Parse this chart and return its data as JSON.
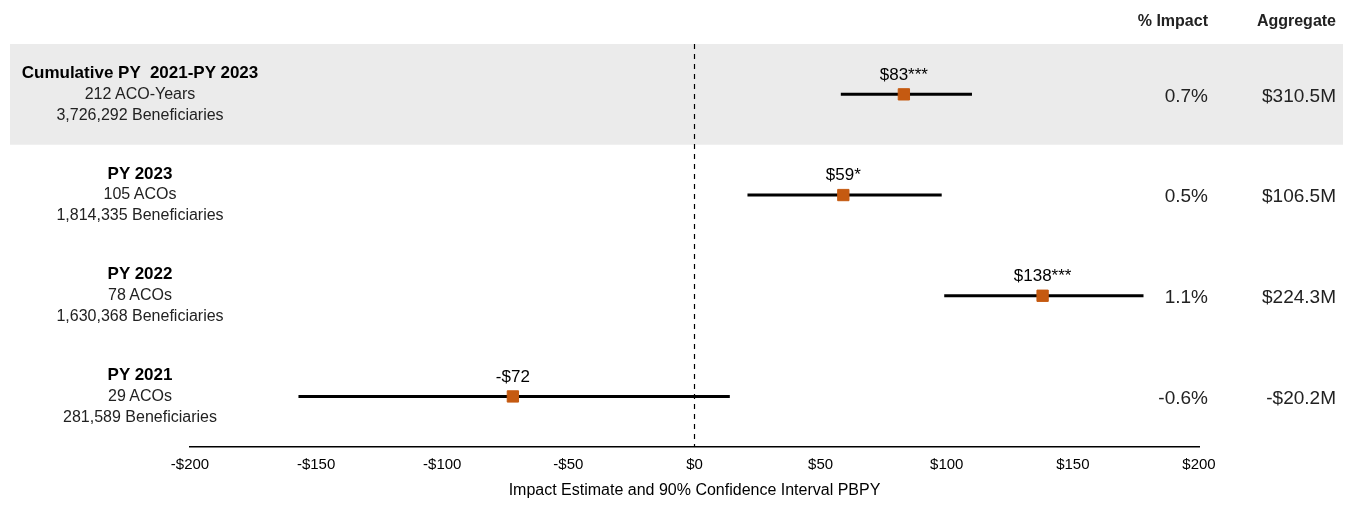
{
  "chart_data": {
    "type": "scatter",
    "xlabel": "Impact Estimate and 90% Confidence Interval PBPY",
    "categories": [
      "Cumulative PY  2021-PY 2023\n212 ACO-Years\n3,726,292 Beneficiaries",
      "PY 2023\n105 ACOs\n1,814,335 Beneficiaries",
      "PY 2022\n78 ACOs\n1,630,368 Beneficiaries",
      "PY 2021\n29 ACOs\n281,589 Beneficiaries"
    ],
    "series": [
      {
        "color": "#c55a11",
        "values": [
          83,
          59,
          138,
          -72
        ],
        "errors": [
          [
            58,
            110
          ],
          [
            21,
            98
          ],
          [
            99,
            178
          ],
          [
            -157,
            14
          ]
        ],
        "value_labels": [
          "$83***",
          "$59*",
          "$138***",
          "-$72"
        ]
      }
    ],
    "marker": "square",
    "orientation": "horizontal",
    "xlim": [
      -200,
      200
    ],
    "xticks": [
      {
        "value": -200,
        "label": "-$200"
      },
      {
        "value": -150,
        "label": "-$150"
      },
      {
        "value": -100,
        "label": "-$100"
      },
      {
        "value": -50,
        "label": "-$50"
      },
      {
        "value": 0,
        "label": "$0"
      },
      {
        "value": 50,
        "label": "$50"
      },
      {
        "value": 100,
        "label": "$100"
      },
      {
        "value": 150,
        "label": "$150"
      },
      {
        "value": 200,
        "label": "$200"
      }
    ],
    "ref_lines": [
      {
        "axis": "x",
        "value": 0,
        "line_style": "dashed",
        "color": "#000000"
      }
    ],
    "bands": [
      {
        "axis": "y",
        "from": "Cumulative PY  2021-PY 2023\n212 ACO-Years\n3,726,292 Beneficiaries",
        "to": "Cumulative PY  2021-PY 2023\n212 ACO-Years\n3,726,292 Beneficiaries",
        "color": "#ebebeb"
      }
    ],
    "annotations": [
      "% Impact",
      "Aggregate",
      "0.7%",
      "$310.5M",
      "0.5%",
      "$106.5M",
      "1.1%",
      "$224.3M",
      "-0.6%",
      "-$20.2M"
    ],
    "grid": false,
    "legend": false
  }
}
